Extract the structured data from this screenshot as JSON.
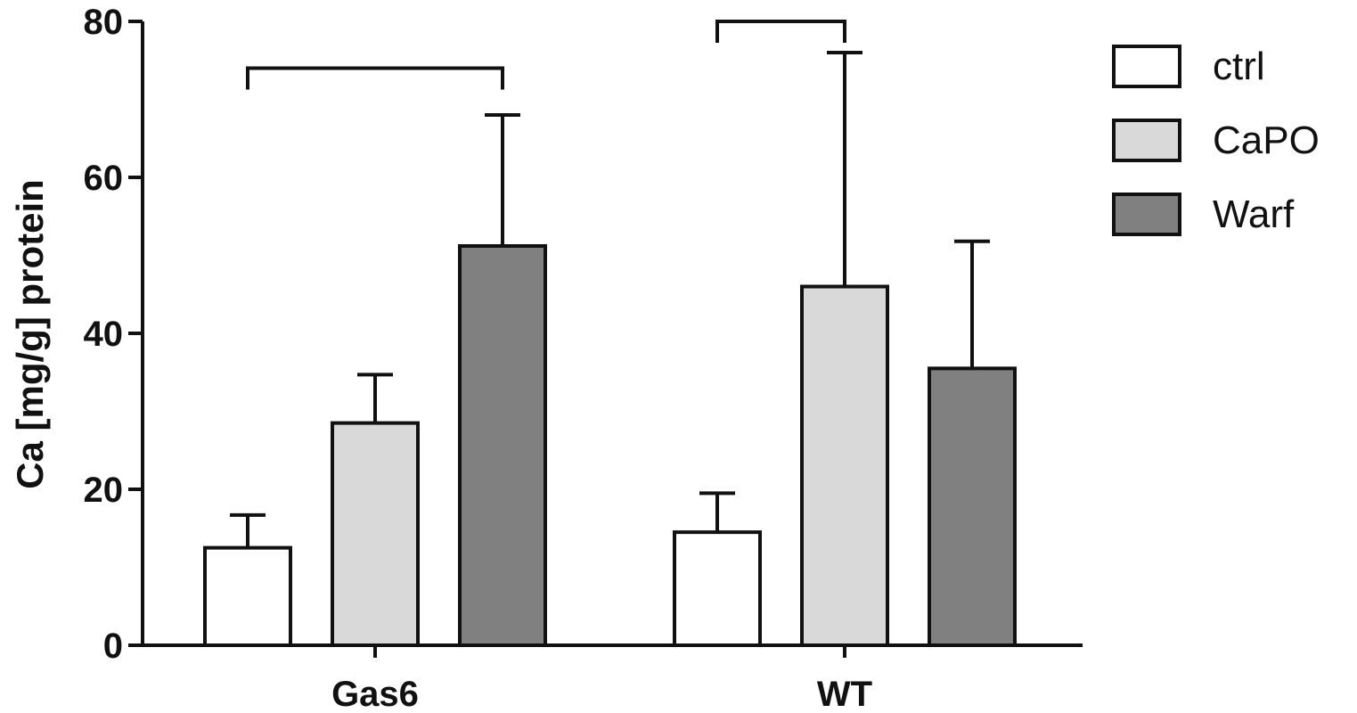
{
  "chart_data": {
    "type": "bar",
    "ylabel": "Ca [mg/g] protein",
    "xlabel": "",
    "ylim": [
      0,
      80
    ],
    "yticks": [
      0,
      20,
      40,
      60,
      80
    ],
    "grid": false,
    "legend_position": "top-right",
    "categories": [
      "Gas6",
      "WT"
    ],
    "series": [
      {
        "name": "ctrl",
        "color": "#ffffff",
        "values": [
          12.5,
          14.5
        ],
        "errors": [
          4.2,
          5.0
        ]
      },
      {
        "name": "CaPO",
        "color": "#d9d9d9",
        "values": [
          28.5,
          46.0
        ],
        "errors": [
          6.2,
          30.0
        ]
      },
      {
        "name": "Warf",
        "color": "#808080",
        "values": [
          51.2,
          35.5
        ],
        "errors": [
          16.8,
          16.3
        ]
      }
    ],
    "significance_brackets": [
      {
        "category": "Gas6",
        "from_series": "ctrl",
        "to_series": "Warf",
        "level": 74
      },
      {
        "category": "WT",
        "from_series": "ctrl",
        "to_series": "CaPO",
        "level": 80
      }
    ]
  }
}
